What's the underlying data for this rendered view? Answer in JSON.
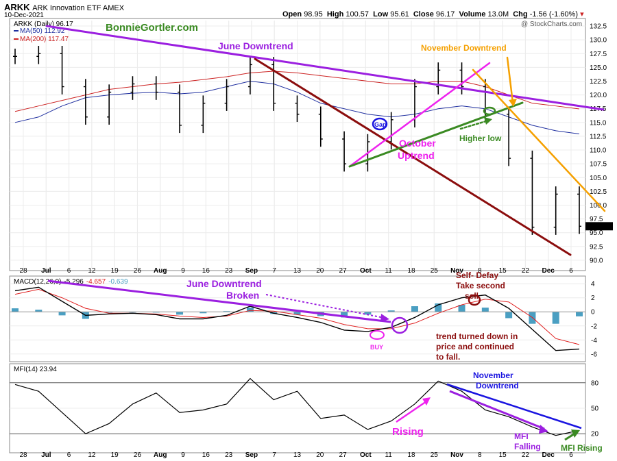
{
  "header": {
    "ticker": "ARKK",
    "name": "ARK Innovation ETF  AMEX",
    "date": "10-Dec-2021",
    "open_label": "Open",
    "open": "98.95",
    "high_label": "High",
    "high": "100.57",
    "low_label": "Low",
    "low": "95.61",
    "close_label": "Close",
    "close": "96.17",
    "volume_label": "Volume",
    "volume": "13.0M",
    "chg_label": "Chg",
    "chg": "-1.56 (-1.60%)",
    "watermark": "@ StockCharts.com"
  },
  "legend": {
    "price": "ARKK (Daily) 96.17",
    "ma50": "MA(50) 112.92",
    "ma200": "MA(200) 117.47",
    "site": "BonnieGortler.com"
  },
  "colors": {
    "ma50": "#1f2f9f",
    "ma200": "#cc2222",
    "purple": "#9b1fe0",
    "brown": "#8b0d0d",
    "magenta": "#ee22ee",
    "green": "#3a8a22",
    "orange": "#f5a000",
    "blue": "#1a14e0",
    "histogram": "#4a9fc2",
    "macd_signal": "#e02020"
  },
  "x_axis": {
    "labels": [
      "28",
      "Jul",
      "6",
      "12",
      "19",
      "26",
      "Aug",
      "9",
      "16",
      "23",
      "Sep",
      "7",
      "13",
      "20",
      "27",
      "Oct",
      "11",
      "18",
      "25",
      "Nov",
      "8",
      "15",
      "22",
      "Dec",
      "6"
    ],
    "bold": [
      "Jul",
      "Aug",
      "Sep",
      "Oct",
      "Nov",
      "Dec"
    ]
  },
  "price_axis": [
    "132.5",
    "130.0",
    "127.5",
    "125.0",
    "122.5",
    "120.0",
    "117.5",
    "115.0",
    "112.5",
    "110.0",
    "107.5",
    "105.0",
    "102.5",
    "100.0",
    "97.5",
    "95.0",
    "92.5",
    "90.0"
  ],
  "macd_axis": [
    "4",
    "2",
    "0",
    "-2",
    "-4",
    "-6"
  ],
  "mfi_axis": [
    "80",
    "50",
    "20"
  ],
  "macd_legend": {
    "name": "MACD(12,26,9)",
    "macd": "-5.296",
    "signal": "-4.657",
    "hist": "-0.639"
  },
  "mfi_legend": "MFI(14) 23.94",
  "annotations": {
    "june": "June Downtrend",
    "nov_down": "November Downtrend",
    "gap": "Gap",
    "oct_up_1": "October",
    "oct_up_2": "Uptrend",
    "higher_low": "Higher low",
    "june_broken_1": "June Downtrend",
    "june_broken_2": "Broken",
    "self_defay_1": "Self- Defay",
    "self_defay_2": "Take second",
    "self_defay_3": "sell",
    "buy": "BUY",
    "trend_1": "trend turned down in",
    "trend_2": "price and continued",
    "trend_3": "to fall.",
    "nov_down_mfi_1": "November",
    "nov_down_mfi_2": "Downtrend",
    "rising": "Rising",
    "mfi_falling_1": "MFI",
    "mfi_falling_2": "Falling",
    "mfi_rising": "MFI Rising"
  },
  "chart_data": [
    {
      "type": "ohlc",
      "title": "ARKK (Daily)",
      "ylim": [
        88.5,
        133.5
      ],
      "x": [
        "Jun 28",
        "Jul 6",
        "Jul 12",
        "Jul 19",
        "Jul 26",
        "Aug 2",
        "Aug 9",
        "Aug 16",
        "Aug 23",
        "Aug 30",
        "Sep 7",
        "Sep 13",
        "Sep 20",
        "Sep 27",
        "Oct 4",
        "Oct 11",
        "Oct 18",
        "Oct 25",
        "Nov 1",
        "Nov 8",
        "Nov 15",
        "Nov 22",
        "Nov 29",
        "Dec 6",
        "Dec 10"
      ],
      "close": [
        127.0,
        127.5,
        121.5,
        116.0,
        120.5,
        122.0,
        120.5,
        114.5,
        118.5,
        121.5,
        125.5,
        118.5,
        116.5,
        112.0,
        107.5,
        111.5,
        115.5,
        121.5,
        124.5,
        121.5,
        116.5,
        108.5,
        96.0,
        102.0,
        96.17
      ],
      "series": [
        {
          "name": "MA(50)",
          "values": [
            115.0,
            116.0,
            118.0,
            119.5,
            120.0,
            120.3,
            120.5,
            120.2,
            120.5,
            121.5,
            122.5,
            122.0,
            120.5,
            118.5,
            117.5,
            116.5,
            116.0,
            116.5,
            117.5,
            118.0,
            117.5,
            116.0,
            114.5,
            113.5,
            112.92
          ]
        },
        {
          "name": "MA(200)",
          "values": [
            117.0,
            118.0,
            119.0,
            120.0,
            121.0,
            121.5,
            122.0,
            122.3,
            122.8,
            123.3,
            124.0,
            124.3,
            124.0,
            123.5,
            123.0,
            122.5,
            122.0,
            122.0,
            122.5,
            122.5,
            121.5,
            120.0,
            118.5,
            118.0,
            117.47
          ]
        }
      ]
    },
    {
      "type": "line",
      "title": "MACD(12,26,9)",
      "ylim": [
        -6.8,
        4.8
      ],
      "series": [
        {
          "name": "MACD",
          "values": [
            3.0,
            3.5,
            1.5,
            -0.5,
            -0.3,
            -0.2,
            -0.4,
            -1.0,
            -1.0,
            -0.5,
            0.8,
            -0.2,
            -0.8,
            -1.5,
            -2.6,
            -2.8,
            -2.2,
            -0.8,
            1.0,
            2.0,
            2.4,
            0.5,
            -2.5,
            -5.5,
            -5.296
          ]
        },
        {
          "name": "Signal",
          "values": [
            2.5,
            3.2,
            2.0,
            0.5,
            -0.2,
            -0.2,
            -0.3,
            -0.6,
            -0.8,
            -0.6,
            0.2,
            0.1,
            -0.4,
            -0.9,
            -1.8,
            -2.4,
            -2.4,
            -1.6,
            -0.2,
            1.0,
            1.8,
            1.4,
            -0.8,
            -3.8,
            -4.657
          ]
        },
        {
          "name": "Histogram",
          "values": [
            0.5,
            0.3,
            -0.5,
            -1.0,
            -0.1,
            0.0,
            -0.1,
            -0.4,
            -0.2,
            0.1,
            0.6,
            -0.3,
            -0.4,
            -0.6,
            -0.8,
            -0.4,
            0.2,
            0.8,
            1.2,
            1.0,
            0.6,
            -0.9,
            -1.7,
            -1.7,
            -0.639
          ]
        }
      ]
    },
    {
      "type": "line",
      "title": "MFI(14)",
      "ylim": [
        0,
        100
      ],
      "series": [
        {
          "name": "MFI",
          "values": [
            78,
            70,
            45,
            20,
            32,
            55,
            68,
            45,
            48,
            55,
            85,
            60,
            70,
            38,
            42,
            25,
            35,
            55,
            82,
            70,
            48,
            40,
            28,
            18,
            23.94
          ]
        }
      ]
    }
  ]
}
